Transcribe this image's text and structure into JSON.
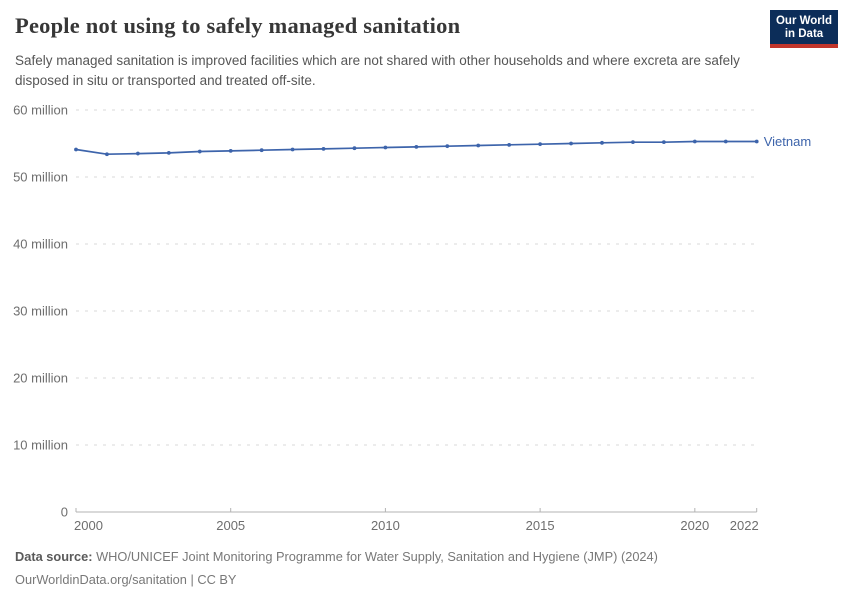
{
  "header": {
    "title": "People not using to safely managed sanitation",
    "subtitle": "Safely managed sanitation is improved facilities which are not shared with other households and where excreta are safely disposed in situ or transported and treated off-site.",
    "logo": {
      "line1": "Our World",
      "line2": "in Data",
      "bg_color": "#0c2d59",
      "accent_color": "#c1352b"
    }
  },
  "chart_data": {
    "type": "line",
    "title": "People not using to safely managed sanitation",
    "unit": "people (millions)",
    "grid": "horizontal-dashed",
    "legend_position": "line-end-label",
    "x": [
      2000,
      2001,
      2002,
      2003,
      2004,
      2005,
      2006,
      2007,
      2008,
      2009,
      2010,
      2011,
      2012,
      2013,
      2014,
      2015,
      2016,
      2017,
      2018,
      2019,
      2020,
      2021,
      2022
    ],
    "series": [
      {
        "name": "Vietnam",
        "color": "#3d64ab",
        "values": [
          54.1,
          53.4,
          53.5,
          53.6,
          53.8,
          53.9,
          54.0,
          54.1,
          54.2,
          54.3,
          54.4,
          54.5,
          54.6,
          54.7,
          54.8,
          54.9,
          55.0,
          55.1,
          55.2,
          55.2,
          55.3,
          55.3,
          55.3
        ]
      }
    ],
    "xlim": [
      2000,
      2022
    ],
    "ylim": [
      0,
      60
    ],
    "xticks": [
      2000,
      2005,
      2010,
      2015,
      2020,
      2022
    ],
    "yticks": [
      {
        "value": 0,
        "label": "0"
      },
      {
        "value": 10,
        "label": "10 million"
      },
      {
        "value": 20,
        "label": "20 million"
      },
      {
        "value": 30,
        "label": "30 million"
      },
      {
        "value": 40,
        "label": "40 million"
      },
      {
        "value": 50,
        "label": "50 million"
      },
      {
        "value": 60,
        "label": "60 million"
      }
    ],
    "entity_label": "Vietnam"
  },
  "footer": {
    "datasource_label": "Data source:",
    "datasource_text": " WHO/UNICEF Joint Monitoring Programme for Water Supply, Sanitation and Hygiene (JMP) (2024)",
    "license_text": "OurWorldinData.org/sanitation | CC BY"
  }
}
